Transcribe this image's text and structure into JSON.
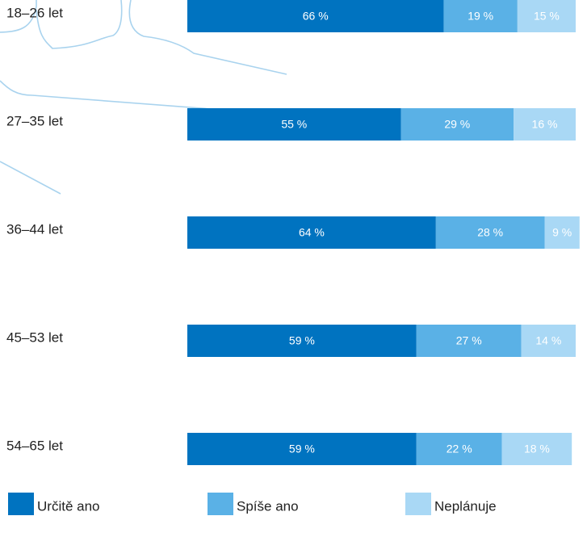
{
  "chart_data": {
    "type": "bar",
    "orientation": "horizontal",
    "stacked": true,
    "categories": [
      "18–26 let",
      "27–35 let",
      "36–44 let",
      "45–53 let",
      "54–65 let"
    ],
    "series": [
      {
        "name": "Určitě ano",
        "color": "#0073c0",
        "values": [
          66,
          55,
          64,
          59,
          59
        ],
        "labels": [
          "66 %",
          "55 %",
          "64 %",
          "59 %",
          "59 %"
        ]
      },
      {
        "name": "Spíše ano",
        "color": "#5ab1e6",
        "values": [
          19,
          29,
          28,
          27,
          22
        ],
        "labels": [
          "19 %",
          "29 %",
          "28 %",
          "27 %",
          "22 %"
        ]
      },
      {
        "name": "Neplánuje",
        "color": "#a9d8f5",
        "values": [
          15,
          16,
          9,
          14,
          18
        ],
        "labels": [
          "15 %",
          "16 %",
          "9 %",
          "14 %",
          "18 %"
        ]
      }
    ],
    "xlim": [
      0,
      100
    ],
    "grid": false,
    "legend_position": "bottom"
  }
}
